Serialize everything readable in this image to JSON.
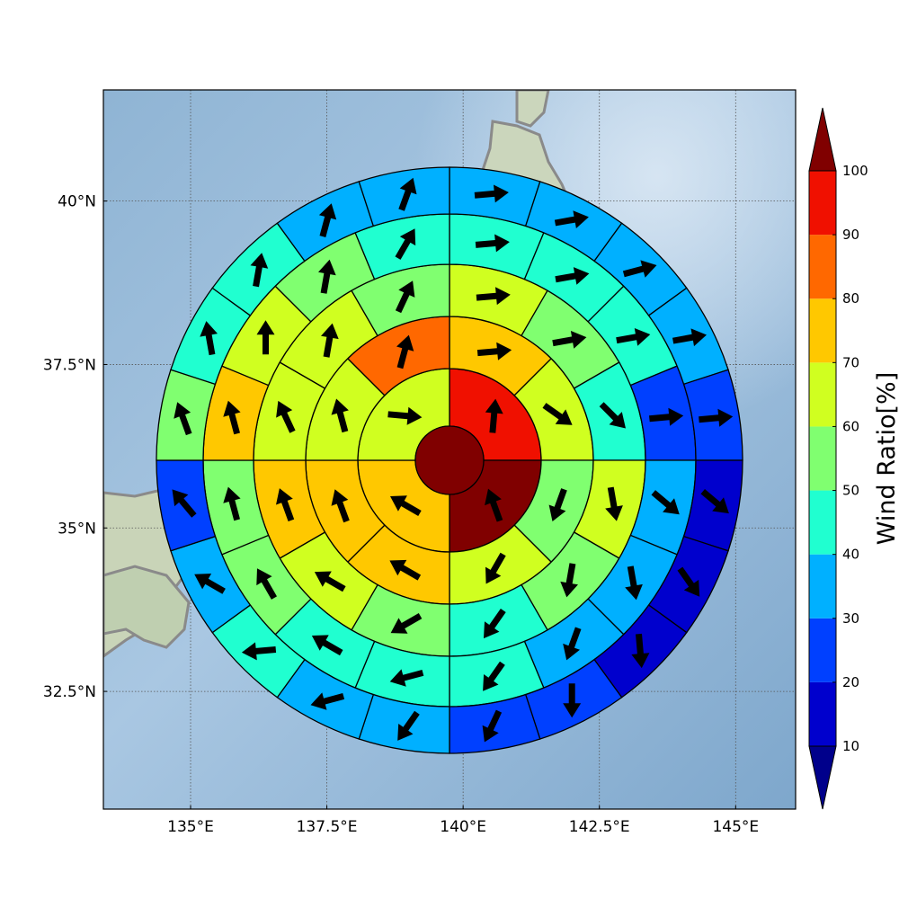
{
  "chart_data": {
    "type": "polar-sector-map",
    "x_ticks": [
      "135°E",
      "137.5°E",
      "140°E",
      "142.5°E",
      "145°E"
    ],
    "x_tick_values": [
      135,
      137.5,
      140,
      142.5,
      145
    ],
    "y_ticks": [
      "40°N",
      "37.5°N",
      "35°N",
      "32.5°N"
    ],
    "y_tick_values": [
      40,
      37.5,
      35,
      32.5
    ],
    "xlim": [
      133.4,
      146.1
    ],
    "ylim": [
      30.7,
      41.7
    ],
    "center": {
      "lon": 139.6,
      "lat": 36.17
    },
    "grid": true,
    "colorbar": {
      "label": "Wind Ratio[%]",
      "ticks": [
        "10",
        "20",
        "30",
        "40",
        "50",
        "60",
        "70",
        "80",
        "90",
        "100"
      ],
      "tick_values": [
        10,
        20,
        30,
        40,
        50,
        60,
        70,
        80,
        90,
        100
      ],
      "extend": "both",
      "colors": [
        "#0000cd",
        "#0040ff",
        "#00b0ff",
        "#20ffd0",
        "#80ff70",
        "#d0ff20",
        "#ffc800",
        "#ff6800",
        "#f01000"
      ],
      "under_color": "#00008b",
      "over_color": "#800000"
    },
    "center_value": 100,
    "center_arrow": null,
    "rings": [
      {
        "sectors": 4,
        "values": [
          95,
          100,
          75,
          65
        ],
        "directions": [
          5,
          340,
          300,
          95
        ]
      },
      {
        "sectors": 8,
        "values": [
          75,
          65,
          55,
          60,
          75,
          70,
          60,
          80
        ],
        "directions": [
          85,
          125,
          200,
          210,
          300,
          340,
          345,
          15
        ]
      },
      {
        "sectors": 12,
        "values": [
          65,
          55,
          45,
          60,
          55,
          45,
          55,
          65,
          75,
          65,
          65,
          55
        ],
        "directions": [
          85,
          80,
          135,
          170,
          190,
          215,
          240,
          300,
          340,
          335,
          10,
          25
        ]
      },
      {
        "sectors": 16,
        "values": [
          45,
          45,
          45,
          25,
          35,
          35,
          35,
          45,
          45,
          45,
          55,
          55,
          70,
          60,
          55,
          45
        ],
        "directions": [
          85,
          80,
          80,
          85,
          130,
          170,
          200,
          215,
          255,
          300,
          330,
          345,
          345,
          0,
          10,
          30
        ]
      },
      {
        "sectors": 20,
        "values": [
          35,
          35,
          35,
          35,
          25,
          15,
          15,
          15,
          25,
          25,
          35,
          35,
          45,
          35,
          25,
          55,
          45,
          45,
          35,
          35
        ],
        "directions": [
          85,
          80,
          75,
          80,
          85,
          130,
          145,
          175,
          180,
          205,
          215,
          255,
          265,
          300,
          320,
          340,
          350,
          10,
          15,
          20
        ]
      }
    ]
  }
}
